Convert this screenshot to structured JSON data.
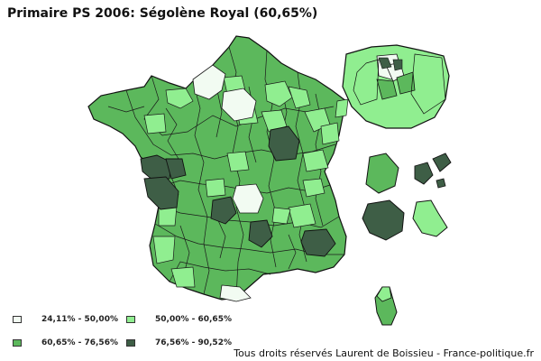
{
  "title": "Primaire PS 2006: Ségolène Royal (60,65%)",
  "colors": {
    "bin1": "#f2fbf2",
    "bin2": "#90ee90",
    "bin3": "#5cb85c",
    "bin4": "#3e5e46",
    "border": "#111111"
  },
  "legend": [
    {
      "label": "24,11% - 50,00%",
      "color": "#f2fbf2"
    },
    {
      "label": "50,00% - 60,65%",
      "color": "#90ee90"
    },
    {
      "label": "60,65% - 76,56%",
      "color": "#5cb85c"
    },
    {
      "label": "76,56% - 90,52%",
      "color": "#3e5e46"
    }
  ],
  "credits": "Tous droits réservés Laurent de Boissieu - France-politique.fr"
}
